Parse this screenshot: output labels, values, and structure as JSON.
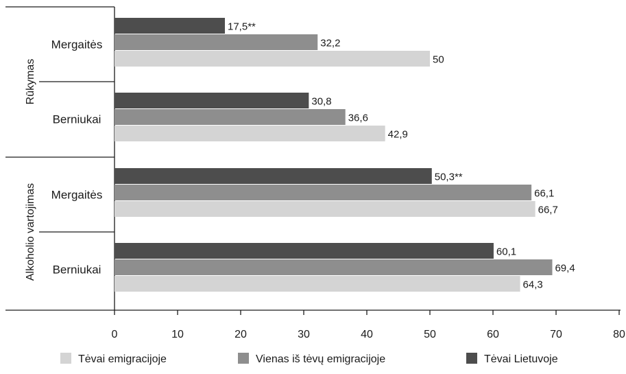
{
  "chart_data": {
    "type": "bar",
    "orientation": "horizontal",
    "title": "",
    "xlabel": "",
    "ylabel": "",
    "xlim": [
      0,
      80
    ],
    "x_ticks": [
      0,
      10,
      20,
      30,
      40,
      50,
      60,
      70,
      80
    ],
    "grid": false,
    "legend_position": "bottom",
    "groups": [
      {
        "label": "Rūkymas",
        "categories": [
          {
            "label": "Mergaitės",
            "bars": [
              {
                "series": "Tėvai Lietuvoje",
                "value": 17.5,
                "label": "17,5**"
              },
              {
                "series": "Vienas iš tėvų emigracijoje",
                "value": 32.2,
                "label": "32,2"
              },
              {
                "series": "Tėvai emigracijoje",
                "value": 50,
                "label": "50"
              }
            ]
          },
          {
            "label": "Berniukai",
            "bars": [
              {
                "series": "Tėvai Lietuvoje",
                "value": 30.8,
                "label": "30,8"
              },
              {
                "series": "Vienas iš tėvų emigracijoje",
                "value": 36.6,
                "label": "36,6"
              },
              {
                "series": "Tėvai emigracijoje",
                "value": 42.9,
                "label": "42,9"
              }
            ]
          }
        ]
      },
      {
        "label": "Alkoholio vartojimas",
        "categories": [
          {
            "label": "Mergaitės",
            "bars": [
              {
                "series": "Tėvai Lietuvoje",
                "value": 50.3,
                "label": "50,3**"
              },
              {
                "series": "Vienas iš tėvų emigracijoje",
                "value": 66.1,
                "label": "66,1"
              },
              {
                "series": "Tėvai emigracijoje",
                "value": 66.7,
                "label": "66,7"
              }
            ]
          },
          {
            "label": "Berniukai",
            "bars": [
              {
                "series": "Tėvai Lietuvoje",
                "value": 60.1,
                "label": "60,1"
              },
              {
                "series": "Vienas iš tėvų emigracijoje",
                "value": 69.4,
                "label": "69,4"
              },
              {
                "series": "Tėvai emigracijoje",
                "value": 64.3,
                "label": "64,3"
              }
            ]
          }
        ]
      }
    ],
    "legend": [
      {
        "name": "Tėvai emigracijoje",
        "color": "#d4d4d4"
      },
      {
        "name": "Vienas iš tėvų emigracijoje",
        "color": "#8e8e8e"
      },
      {
        "name": "Tėvai Lietuvoje",
        "color": "#4d4d4d"
      }
    ],
    "colors": {
      "Tėvai Lietuvoje": "#4d4d4d",
      "Vienas iš tėvų emigracijoje": "#8e8e8e",
      "Tėvai emigracijoje": "#d4d4d4",
      "axis": "#1a1a1a"
    }
  }
}
